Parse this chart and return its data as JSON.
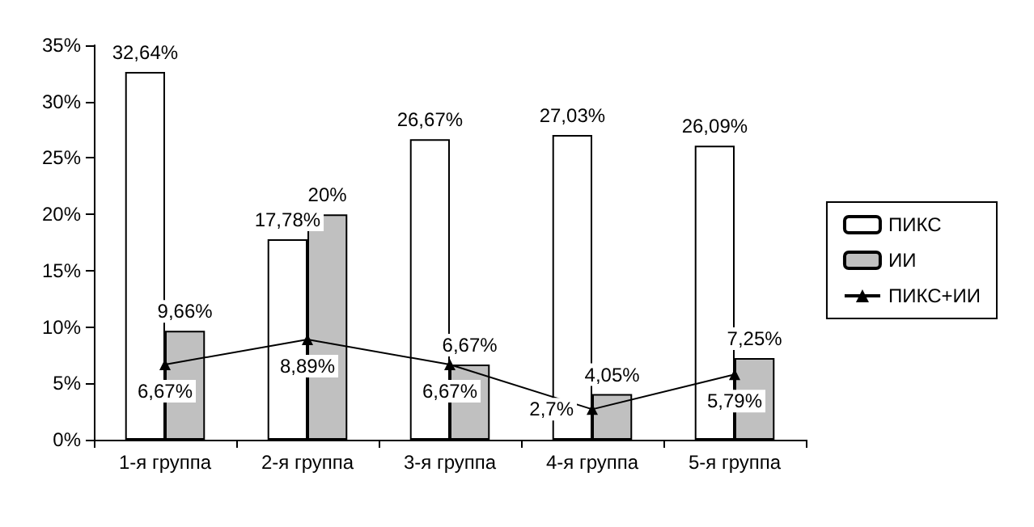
{
  "chart_data": {
    "type": "bar",
    "categories": [
      "1-я группа",
      "2-я группа",
      "3-я группа",
      "4-я группа",
      "5-я группа"
    ],
    "series": [
      {
        "name": "ПИКС",
        "color": "#ffffff",
        "values": [
          32.64,
          17.78,
          26.67,
          27.03,
          26.09
        ],
        "value_labels": [
          "32,64%",
          "17,78%",
          "26,67%",
          "27,03%",
          "26,09%"
        ]
      },
      {
        "name": "ИИ",
        "color": "#c0c0c0",
        "values": [
          9.66,
          20,
          6.67,
          4.05,
          7.25
        ],
        "value_labels": [
          "9,66%",
          "20%",
          "6,67%",
          "4,05%",
          "7,25%"
        ]
      },
      {
        "name": "ПИКС+ИИ",
        "type": "line",
        "color": "#000000",
        "marker": "triangle",
        "values": [
          6.67,
          8.89,
          6.67,
          2.7,
          5.79
        ],
        "value_labels": [
          "6,67%",
          "8,89%",
          "6,67%",
          "2,7%",
          "5,79%"
        ]
      }
    ],
    "ylim": [
      0,
      35
    ],
    "yticks": [
      {
        "value": 0,
        "label": "0%"
      },
      {
        "value": 5,
        "label": "5%"
      },
      {
        "value": 10,
        "label": "10%"
      },
      {
        "value": 15,
        "label": "15%"
      },
      {
        "value": 20,
        "label": "20%"
      },
      {
        "value": 25,
        "label": "25%"
      },
      {
        "value": 30,
        "label": "30%"
      },
      {
        "value": 35,
        "label": "35%"
      }
    ],
    "grid": false,
    "legend": "right"
  }
}
